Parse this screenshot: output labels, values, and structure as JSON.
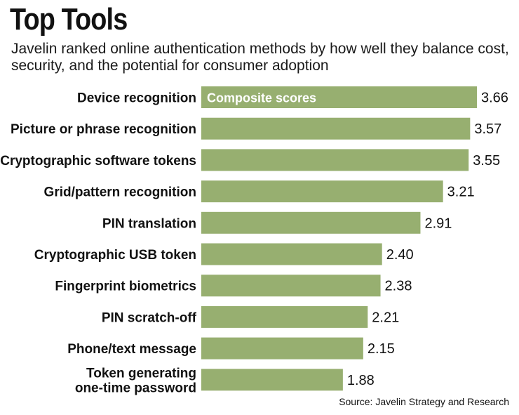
{
  "chart_data": {
    "type": "bar",
    "orientation": "horizontal",
    "title": "Top Tools",
    "subtitle": "Javelin ranked online authentication methods by how well they balance cost, security, and the potential for consumer adoption",
    "series_label": "Composite scores",
    "categories": [
      "Device recognition",
      "Picture or phrase recognition",
      "Cryptographic software tokens",
      "Grid/pattern recognition",
      "PIN translation",
      "Cryptographic USB token",
      "Fingerprint biometrics",
      "PIN scratch-off",
      "Phone/text message",
      "Token generating one-time password"
    ],
    "category_lines": [
      [
        "Device recognition"
      ],
      [
        "Picture or phrase recognition"
      ],
      [
        "Cryptographic software tokens"
      ],
      [
        "Grid/pattern recognition"
      ],
      [
        "PIN translation"
      ],
      [
        "Cryptographic USB token"
      ],
      [
        "Fingerprint biometrics"
      ],
      [
        "PIN scratch-off"
      ],
      [
        "Phone/text message"
      ],
      [
        "Token generating",
        "one-time password"
      ]
    ],
    "values": [
      3.66,
      3.57,
      3.55,
      3.21,
      2.91,
      2.4,
      2.38,
      2.21,
      2.15,
      1.88
    ],
    "value_labels": [
      "3.66",
      "3.57",
      "3.55",
      "3.21",
      "2.91",
      "2.40",
      "2.38",
      "2.21",
      "2.15",
      "1.88"
    ],
    "xlim": [
      0,
      3.66
    ],
    "xlabel": "",
    "ylabel": "",
    "grid": false,
    "source": "Source: Javelin Strategy and Research",
    "colors": {
      "bar": "#97af70",
      "inbar_text": "#ffffff",
      "text": "#111111"
    }
  }
}
